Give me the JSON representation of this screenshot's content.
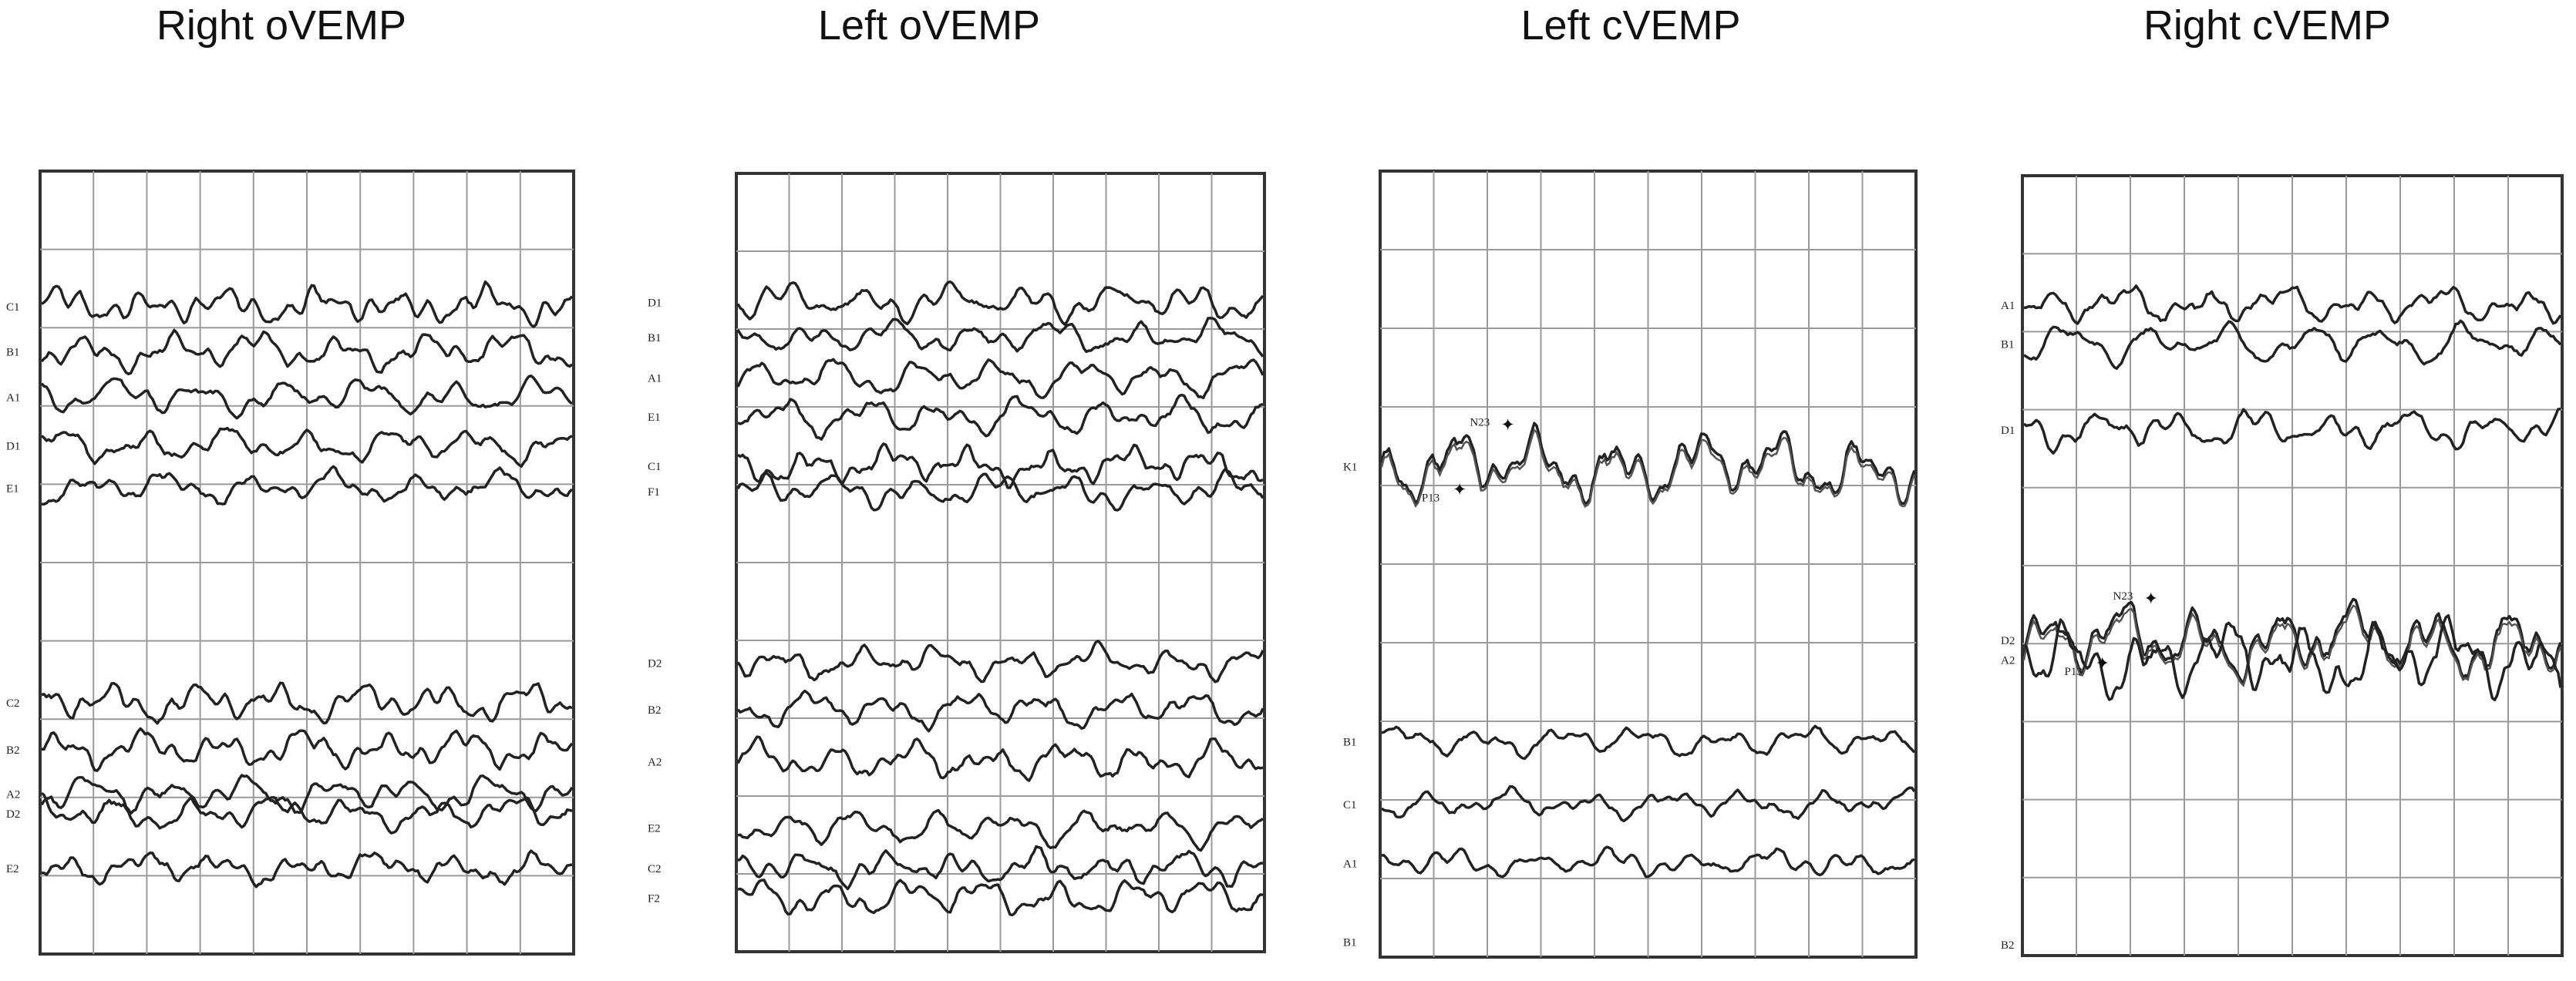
{
  "chart_data": [
    {
      "type": "line",
      "title": "Right oVEMP",
      "grid": true,
      "traces": [
        {
          "label": "C1",
          "baseline": 0.172
        },
        {
          "label": "B1",
          "baseline": 0.23
        },
        {
          "label": "A1",
          "baseline": 0.288
        },
        {
          "label": "D1",
          "baseline": 0.35
        },
        {
          "label": "E1",
          "baseline": 0.404
        },
        {
          "label": "C2",
          "baseline": 0.678
        },
        {
          "label": "B2",
          "baseline": 0.738
        },
        {
          "label": "A2",
          "baseline": 0.795
        },
        {
          "label": "D2",
          "baseline": 0.82
        },
        {
          "label": "E2",
          "baseline": 0.89
        }
      ],
      "peaks": []
    },
    {
      "type": "line",
      "title": "Left oVEMP",
      "grid": true,
      "traces": [
        {
          "label": "D1",
          "baseline": 0.165
        },
        {
          "label": "B1",
          "baseline": 0.21
        },
        {
          "label": "A1",
          "baseline": 0.262
        },
        {
          "label": "E1",
          "baseline": 0.312
        },
        {
          "label": "C1",
          "baseline": 0.375
        },
        {
          "label": "F1",
          "baseline": 0.408
        },
        {
          "label": "D2",
          "baseline": 0.628
        },
        {
          "label": "B2",
          "baseline": 0.688
        },
        {
          "label": "A2",
          "baseline": 0.755
        },
        {
          "label": "E2",
          "baseline": 0.84
        },
        {
          "label": "C2",
          "baseline": 0.892
        },
        {
          "label": "F2",
          "baseline": 0.93
        }
      ],
      "peaks": []
    },
    {
      "type": "line",
      "title": "Left cVEMP",
      "grid": true,
      "traces": [
        {
          "label": "K1",
          "baseline": 0.375
        },
        {
          "label": "B1",
          "baseline": 0.725
        },
        {
          "label": "C1",
          "baseline": 0.805
        },
        {
          "label": "A1",
          "baseline": 0.88
        },
        {
          "label": "B1",
          "baseline": 0.98
        }
      ],
      "peaks": [
        {
          "label": "N23",
          "trace": 0
        },
        {
          "label": "P13",
          "trace": 0
        }
      ]
    },
    {
      "type": "line",
      "title": "Right cVEMP",
      "grid": true,
      "traces": [
        {
          "label": "A1",
          "baseline": 0.165
        },
        {
          "label": "B1",
          "baseline": 0.215
        },
        {
          "label": "D1",
          "baseline": 0.325
        },
        {
          "label": "D2",
          "baseline": 0.595
        },
        {
          "label": "A2",
          "baseline": 0.62
        },
        {
          "label": "B2",
          "baseline": 0.985
        }
      ],
      "peaks": [
        {
          "label": "N23",
          "trace": 3
        },
        {
          "label": "P13",
          "trace": 3
        }
      ]
    }
  ]
}
